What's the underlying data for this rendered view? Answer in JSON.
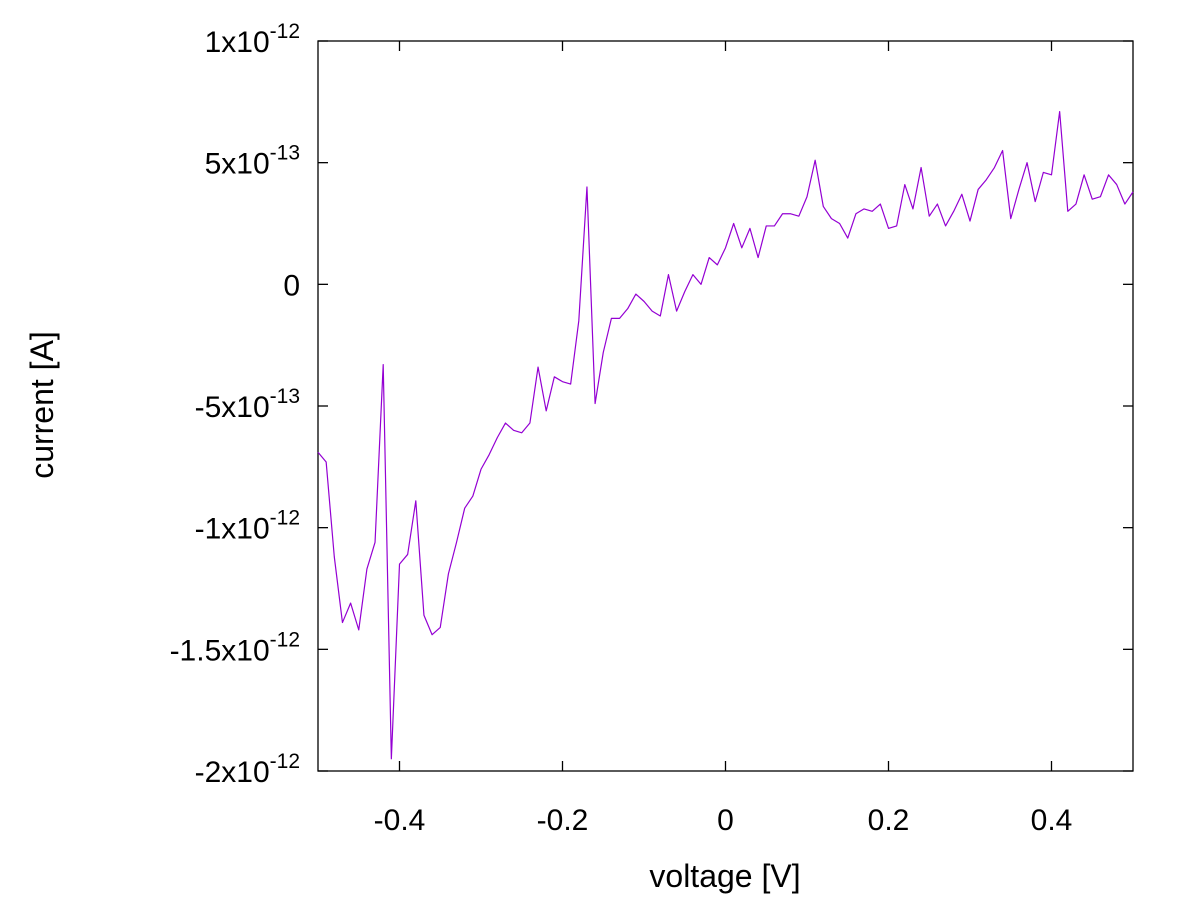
{
  "chart_data": {
    "type": "line",
    "title": "",
    "xlabel": "voltage [V]",
    "ylabel": "current [A]",
    "xlim": [
      -0.5,
      0.5
    ],
    "ylim": [
      -2e-12,
      1e-12
    ],
    "grid": false,
    "legend": "none",
    "x_ticks": [
      {
        "value": -0.4,
        "label": "-0.4"
      },
      {
        "value": -0.2,
        "label": "-0.2"
      },
      {
        "value": 0,
        "label": "0"
      },
      {
        "value": 0.2,
        "label": "0.2"
      },
      {
        "value": 0.4,
        "label": "0.4"
      }
    ],
    "y_ticks": [
      {
        "value": 1e-12,
        "mantissa": "1",
        "exponent": "-12",
        "label": "1x10-12"
      },
      {
        "value": 5e-13,
        "mantissa": "5",
        "exponent": "-13",
        "label": "5x10-13"
      },
      {
        "value": 0,
        "mantissa": "0",
        "exponent": "",
        "label": "0"
      },
      {
        "value": -5e-13,
        "mantissa": "-5",
        "exponent": "-13",
        "label": "-5x10-13"
      },
      {
        "value": -1e-12,
        "mantissa": "-1",
        "exponent": "-12",
        "label": "-1x10-12"
      },
      {
        "value": -1.5e-12,
        "mantissa": "-1.5",
        "exponent": "-12",
        "label": "-1.5x10-12"
      },
      {
        "value": -2e-12,
        "mantissa": "-2",
        "exponent": "-12",
        "label": "-2x10-12"
      }
    ],
    "series": [
      {
        "color": "#9400d3",
        "x": [
          -0.5,
          -0.49,
          -0.48,
          -0.47,
          -0.46,
          -0.45,
          -0.44,
          -0.43,
          -0.42,
          -0.41,
          -0.4,
          -0.39,
          -0.38,
          -0.37,
          -0.36,
          -0.35,
          -0.34,
          -0.33,
          -0.32,
          -0.31,
          -0.3,
          -0.29,
          -0.28,
          -0.27,
          -0.26,
          -0.25,
          -0.24,
          -0.23,
          -0.22,
          -0.21,
          -0.2,
          -0.19,
          -0.18,
          -0.17,
          -0.16,
          -0.15,
          -0.14,
          -0.13,
          -0.12,
          -0.11,
          -0.1,
          -0.09,
          -0.08,
          -0.07,
          -0.06,
          -0.05,
          -0.04,
          -0.03,
          -0.02,
          -0.01,
          0,
          0.01,
          0.02,
          0.03,
          0.04,
          0.05,
          0.06,
          0.07,
          0.08,
          0.09,
          0.1,
          0.11,
          0.12,
          0.13,
          0.14,
          0.15,
          0.16,
          0.17,
          0.18,
          0.19,
          0.2,
          0.21,
          0.22,
          0.23,
          0.24,
          0.25,
          0.26,
          0.27,
          0.28,
          0.29,
          0.3,
          0.31,
          0.32,
          0.33,
          0.34,
          0.35,
          0.36,
          0.37,
          0.38,
          0.39,
          0.4,
          0.41,
          0.42,
          0.43,
          0.44,
          0.45,
          0.46,
          0.47,
          0.48,
          0.49,
          0.5
        ],
        "y": [
          -6.9e-13,
          -7.3e-13,
          -1.12e-12,
          -1.39e-12,
          -1.31e-12,
          -1.42e-12,
          -1.17e-12,
          -1.06e-12,
          -3.3e-13,
          -1.95e-12,
          -1.15e-12,
          -1.11e-12,
          -8.9e-13,
          -1.36e-12,
          -1.44e-12,
          -1.41e-12,
          -1.19e-12,
          -1.06e-12,
          -9.2e-13,
          -8.7e-13,
          -7.6e-13,
          -7e-13,
          -6.3e-13,
          -5.7e-13,
          -6e-13,
          -6.1e-13,
          -5.7e-13,
          -3.4e-13,
          -5.2e-13,
          -3.8e-13,
          -4e-13,
          -4.1e-13,
          -1.5e-13,
          4e-13,
          -4.9e-13,
          -2.8e-13,
          -1.4e-13,
          -1.4e-13,
          -1e-13,
          -4e-14,
          -7e-14,
          -1.1e-13,
          -1.3e-13,
          4e-14,
          -1.1e-13,
          -3e-14,
          4e-14,
          0,
          1.1e-13,
          8e-14,
          1.5e-13,
          2.5e-13,
          1.5e-13,
          2.3e-13,
          1.1e-13,
          2.4e-13,
          2.4e-13,
          2.9e-13,
          2.9e-13,
          2.8e-13,
          3.6e-13,
          5.1e-13,
          3.2e-13,
          2.7e-13,
          2.5e-13,
          1.9e-13,
          2.9e-13,
          3.1e-13,
          3e-13,
          3.3e-13,
          2.3e-13,
          2.4e-13,
          4.1e-13,
          3.1e-13,
          4.8e-13,
          2.8e-13,
          3.3e-13,
          2.4e-13,
          3e-13,
          3.7e-13,
          2.6e-13,
          3.9e-13,
          4.3e-13,
          4.8e-13,
          5.5e-13,
          2.7e-13,
          3.9e-13,
          5e-13,
          3.4e-13,
          4.6e-13,
          4.5e-13,
          7.1e-13,
          3e-13,
          3.3e-13,
          4.5e-13,
          3.5e-13,
          3.6e-13,
          4.5e-13,
          4.1e-13,
          3.3e-13,
          3.8e-13
        ]
      }
    ]
  }
}
